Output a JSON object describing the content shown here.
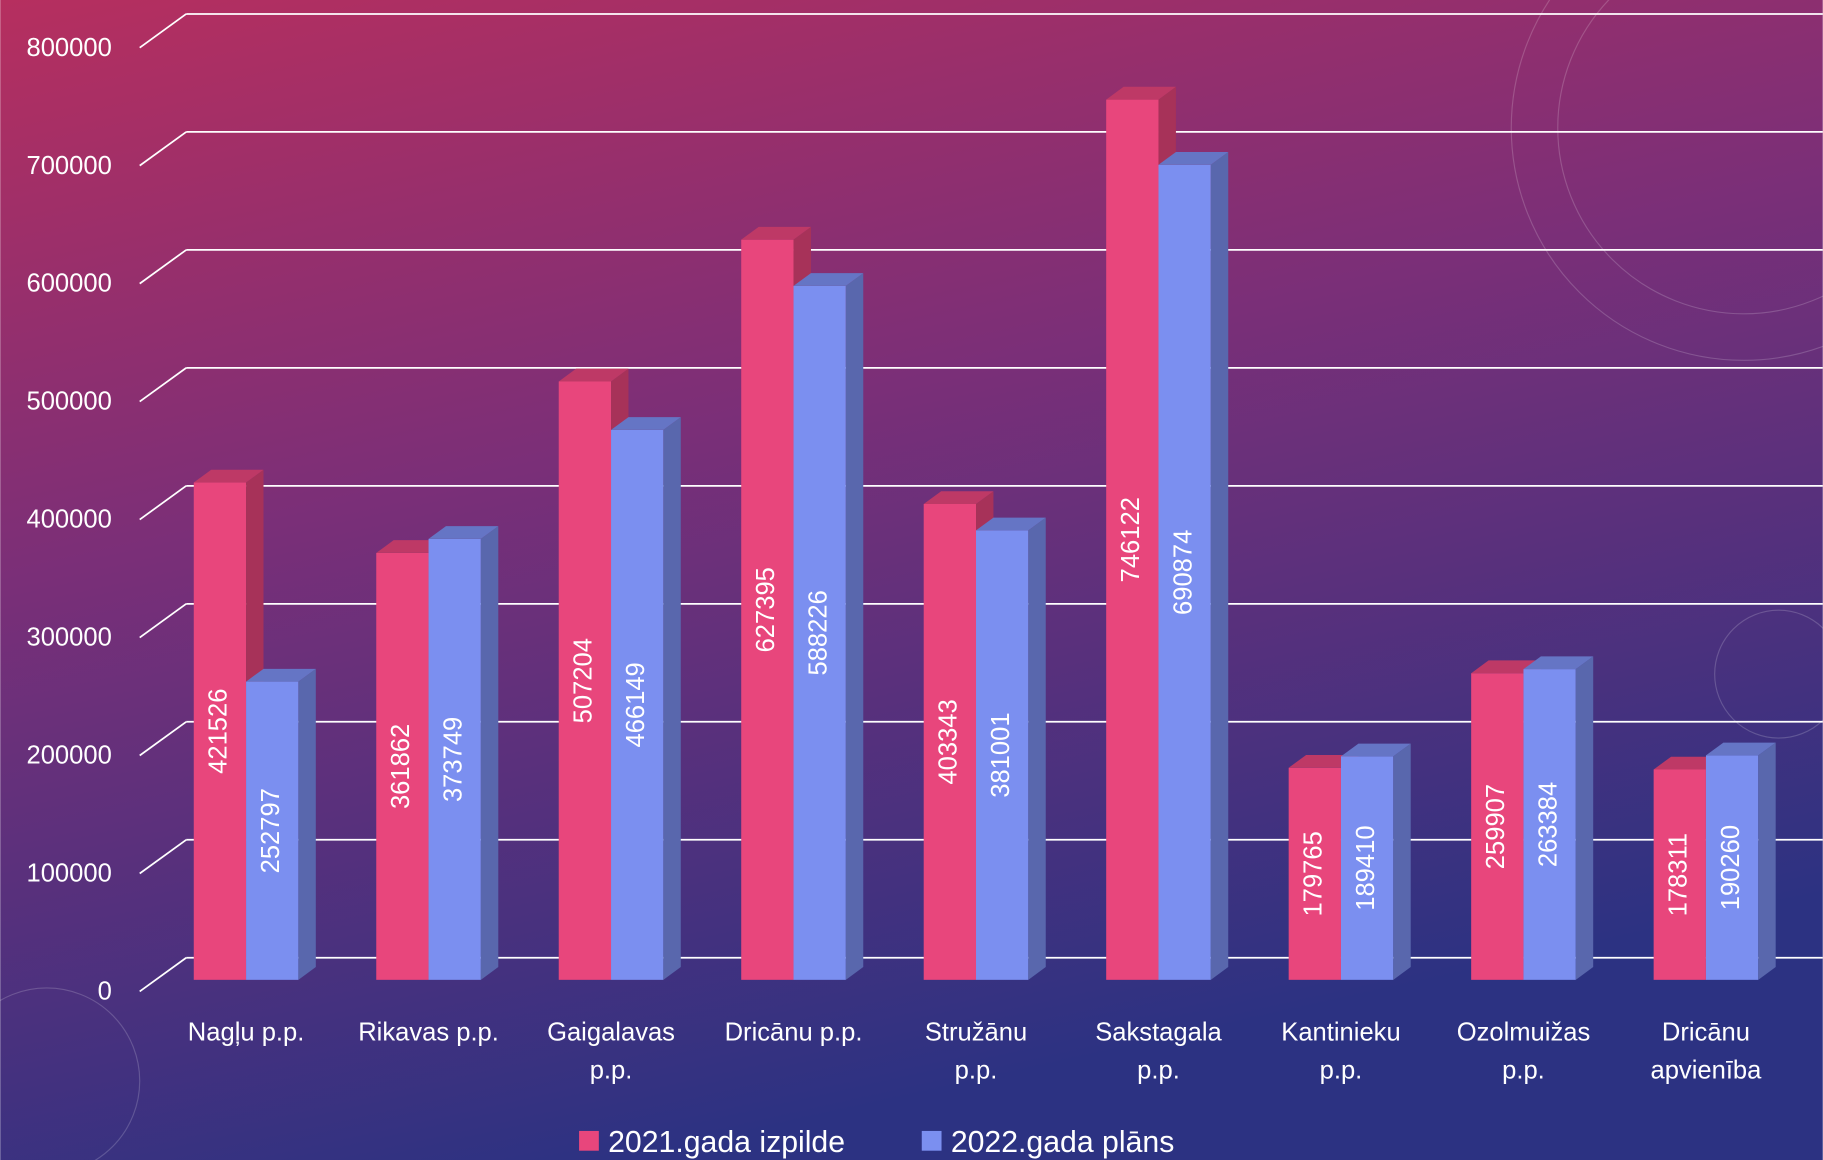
{
  "chart_data": {
    "type": "bar3d",
    "categories": [
      "Nagļu p.p.",
      "Rikavas p.p.",
      "Gaigalavas p.p.",
      "Dricānu p.p.",
      "Stružānu p.p.",
      "Sakstagala p.p.",
      "Kantinieku p.p.",
      "Ozolmuižas p.p.",
      "Dricānu apvienība"
    ],
    "series": [
      {
        "name": "2021.gada izpilde",
        "color": "#e8467c",
        "values": [
          421526,
          361862,
          507204,
          627395,
          403343,
          746122,
          179765,
          259907,
          178311
        ]
      },
      {
        "name": "2022.gada plāns",
        "color": "#7b8ff0",
        "values": [
          252797,
          373749,
          466149,
          588226,
          381001,
          690874,
          189410,
          263384,
          190260
        ]
      }
    ],
    "ylim": [
      0,
      800000
    ],
    "yticks": [
      0,
      100000,
      200000,
      300000,
      400000,
      500000,
      600000,
      700000,
      800000
    ],
    "grid": true,
    "legend": "bottom"
  }
}
